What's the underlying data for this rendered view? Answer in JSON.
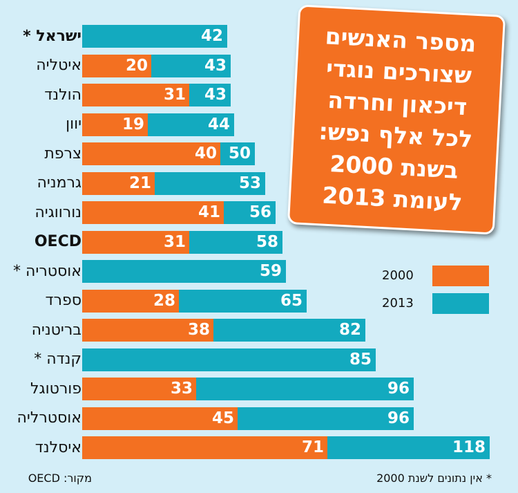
{
  "chart_data": {
    "type": "bar",
    "title": "מספר האנשים שצורכים נוגדי דיכאון וחרדה לכל אלף נפש: בשנת 2000 לעומת 2013",
    "categories": [
      "ישראל *",
      "איטליה",
      "הולנד",
      "יוון",
      "צרפת",
      "גרמניה",
      "נורווגיה",
      "OECD",
      "אוסטריה *",
      "ספרד",
      "בריטניה",
      "קנדה *",
      "פורטוגל",
      "אוסטרליה",
      "איסלנד"
    ],
    "bold_categories": [
      "ישראל *",
      "OECD"
    ],
    "series": [
      {
        "name": "2000",
        "color": "#f37021",
        "values": [
          null,
          20,
          31,
          19,
          40,
          21,
          41,
          31,
          null,
          28,
          38,
          null,
          33,
          45,
          71
        ]
      },
      {
        "name": "2013",
        "color": "#13aabf",
        "values": [
          42,
          43,
          43,
          44,
          50,
          53,
          56,
          58,
          59,
          65,
          82,
          85,
          96,
          96,
          118
        ]
      }
    ],
    "legend_position": "right",
    "xlim": [
      0,
      118
    ],
    "grid": false
  },
  "title_lines": "מספר האנשים\nשצורכים נוגדי\nדיכאון וחרדה\nלכל אלף נפש:\nבשנת 2000\nלעומת 2013",
  "legend": [
    {
      "label": "2000",
      "color": "#f37021"
    },
    {
      "label": "2013",
      "color": "#13aabf"
    }
  ],
  "footnote_source": "מקור: OECD",
  "footnote_note": "* אין נתונים לשנת 2000"
}
